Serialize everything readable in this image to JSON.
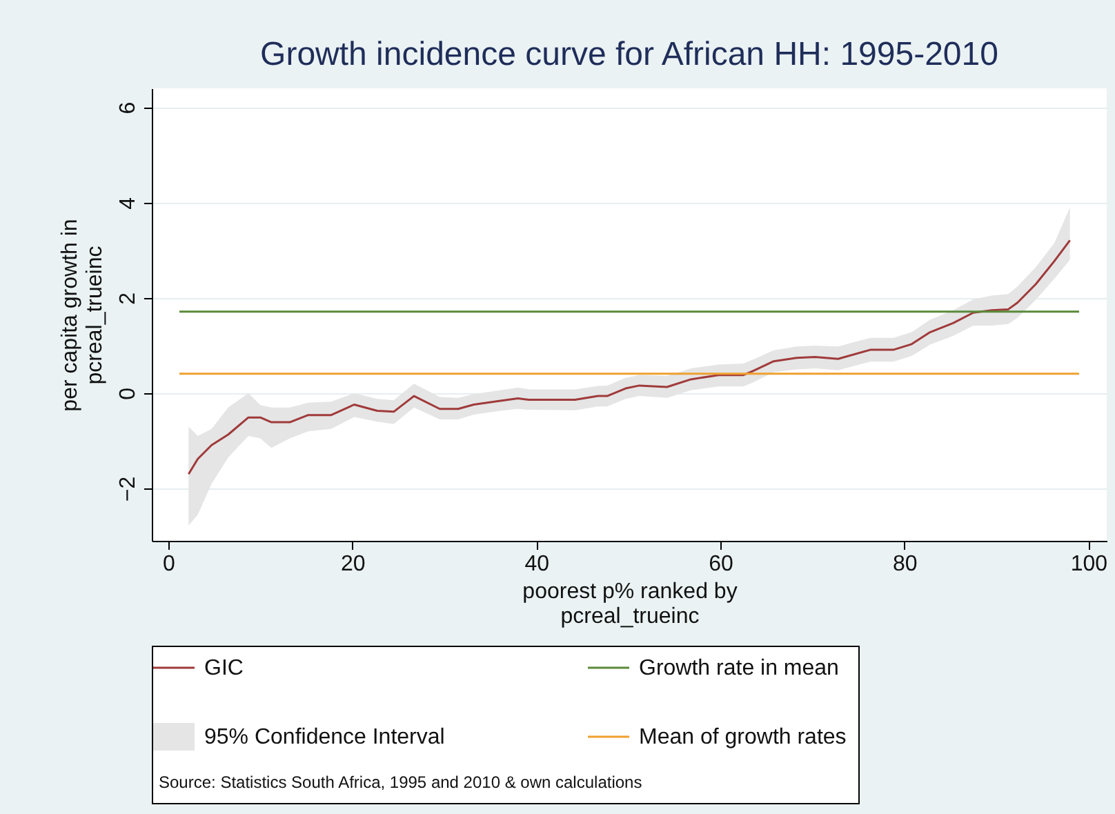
{
  "chart_data": {
    "type": "line",
    "title": "Growth incidence curve for African HH: 1995-2010",
    "xlabel": "poorest p% ranked by\npcreal_trueinc",
    "ylabel": "per capita growth in\npcreal_trueinc",
    "xlim": [
      -1.8,
      102
    ],
    "xticks": [
      0,
      20,
      40,
      60,
      80,
      100
    ],
    "ylim": [
      -3.1,
      6.4
    ],
    "yticks": [
      -2,
      0,
      2,
      4,
      6
    ],
    "grid": "y",
    "legend": "bottom",
    "annotations": [
      "95% Confidence Interval",
      "Source: Statistics South Africa, 1995 and 2010 & own calculations"
    ],
    "series": [
      {
        "name": "GIC",
        "color": "#a03a3a",
        "x": [
          2.2,
          3.2,
          4.7,
          6.5,
          8.7,
          10.0,
          11.2,
          13.2,
          15.2,
          17.7,
          20.2,
          22.7,
          24.5,
          26.7,
          29.5,
          31.5,
          33.2,
          35.7,
          38.0,
          39.2,
          44.2,
          46.7,
          47.7,
          49.7,
          51.2,
          54.2,
          56.8,
          59.8,
          62.5,
          63.5,
          65.8,
          68.3,
          70.3,
          72.8,
          76.3,
          78.8,
          80.8,
          82.8,
          85.3,
          87.5,
          89.5,
          91.3,
          92.3,
          94.3,
          96.3,
          98.0
        ],
        "values": [
          -1.7,
          -1.38,
          -1.09,
          -0.87,
          -0.51,
          -0.51,
          -0.61,
          -0.61,
          -0.46,
          -0.46,
          -0.24,
          -0.37,
          -0.39,
          -0.06,
          -0.33,
          -0.33,
          -0.24,
          -0.17,
          -0.11,
          -0.14,
          -0.14,
          -0.06,
          -0.06,
          0.1,
          0.16,
          0.13,
          0.29,
          0.38,
          0.38,
          0.46,
          0.67,
          0.74,
          0.76,
          0.72,
          0.91,
          0.91,
          1.03,
          1.28,
          1.47,
          1.69,
          1.74,
          1.76,
          1.9,
          2.29,
          2.77,
          3.21
        ],
        "lower": [
          -2.78,
          -2.55,
          -1.9,
          -1.35,
          -0.9,
          -0.95,
          -1.15,
          -0.95,
          -0.8,
          -0.75,
          -0.5,
          -0.6,
          -0.65,
          -0.3,
          -0.55,
          -0.55,
          -0.45,
          -0.38,
          -0.33,
          -0.35,
          -0.36,
          -0.28,
          -0.28,
          -0.12,
          -0.06,
          -0.1,
          0.06,
          0.14,
          0.14,
          0.22,
          0.44,
          0.5,
          0.52,
          0.48,
          0.66,
          0.66,
          0.78,
          1.02,
          1.2,
          1.42,
          1.42,
          1.45,
          1.58,
          1.96,
          2.4,
          2.8
        ],
        "upper": [
          -0.7,
          -0.9,
          -0.75,
          -0.3,
          0.0,
          -0.25,
          -0.3,
          -0.3,
          -0.2,
          -0.18,
          0.0,
          -0.12,
          -0.15,
          0.2,
          -0.08,
          -0.1,
          -0.02,
          0.05,
          0.12,
          0.08,
          0.08,
          0.15,
          0.16,
          0.32,
          0.38,
          0.36,
          0.52,
          0.6,
          0.62,
          0.7,
          0.9,
          0.98,
          1.0,
          0.98,
          1.16,
          1.16,
          1.28,
          1.54,
          1.74,
          1.97,
          2.05,
          2.08,
          2.24,
          2.65,
          3.15,
          3.9
        ]
      },
      {
        "name": "Growth rate in mean",
        "type": "line",
        "color": "#5a8a3a",
        "x": [
          1.2,
          99
        ],
        "values": [
          1.71,
          1.71
        ]
      },
      {
        "name": "Mean of growth rates",
        "type": "line",
        "color": "#f0a030",
        "x": [
          1.2,
          99
        ],
        "values": [
          0.41,
          0.41
        ]
      }
    ]
  }
}
